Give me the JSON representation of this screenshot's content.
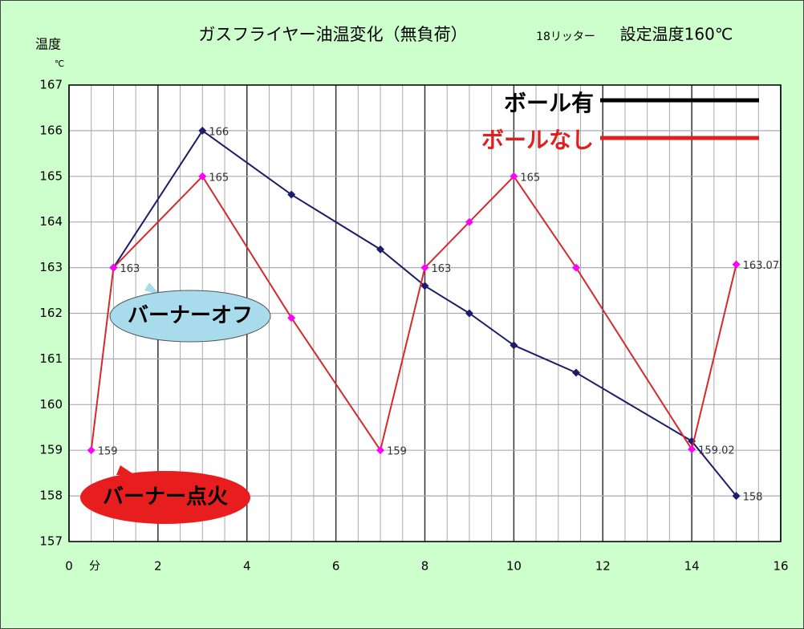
{
  "chart_data": {
    "type": "line",
    "title": "ガスフライヤー油温変化（無負荷）",
    "subtitle": "18リッター",
    "setting": "設定温度160℃",
    "ylabel": "温度",
    "yunit": "℃",
    "xlabel": "分",
    "xlim": [
      0,
      16
    ],
    "xticks": [
      0,
      2,
      4,
      6,
      8,
      10,
      12,
      14,
      16
    ],
    "ylim": [
      157,
      167
    ],
    "yticks": [
      157,
      158,
      159,
      160,
      161,
      162,
      163,
      164,
      165,
      166,
      167
    ],
    "grid": true,
    "legend": "upper right",
    "series": [
      {
        "name": "ボール有",
        "color": "#1c1c6b",
        "marker_color": "#1c1c6b",
        "x": [
          1,
          3,
          5,
          7,
          8,
          9,
          10,
          11.4,
          14,
          15
        ],
        "values": [
          163,
          166,
          164.6,
          163.4,
          162.6,
          162.0,
          161.3,
          160.7,
          159.2,
          158
        ],
        "value_labels": [
          null,
          "166",
          null,
          null,
          null,
          null,
          null,
          null,
          null,
          "158"
        ]
      },
      {
        "name": "ボールなし",
        "color": "#d42a2a",
        "marker_color": "#ff00ff",
        "x": [
          0.5,
          1,
          3,
          5,
          7,
          8,
          9,
          10,
          11.4,
          14,
          15
        ],
        "values": [
          159,
          163,
          165,
          161.9,
          159,
          163,
          164,
          165,
          163,
          159.02,
          163.07
        ],
        "value_labels": [
          "159",
          "163",
          "165",
          null,
          "159",
          "163",
          null,
          "165",
          null,
          "159.02",
          "163.07"
        ]
      }
    ],
    "annotations": [
      "バーナーオフ",
      "バーナー点火"
    ]
  }
}
